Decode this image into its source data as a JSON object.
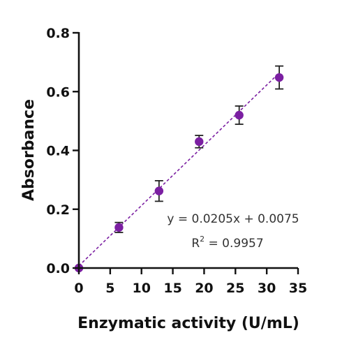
{
  "chart_data": {
    "type": "scatter",
    "xlabel": "Enzymatic activity (U/mL)",
    "ylabel": "Absorbance",
    "xlim": [
      0,
      35
    ],
    "ylim": [
      0,
      0.8
    ],
    "xticks": [
      0,
      5,
      10,
      15,
      20,
      25,
      30,
      35
    ],
    "yticks": [
      0.0,
      0.2,
      0.4,
      0.6,
      0.8
    ],
    "xtick_labels": [
      "0",
      "5",
      "10",
      "15",
      "20",
      "25",
      "30",
      "35"
    ],
    "ytick_labels": [
      "0.0",
      "0.2",
      "0.4",
      "0.6",
      "0.8"
    ],
    "grid": false,
    "series": [
      {
        "x": [
          0,
          6.4,
          12.8,
          19.2,
          25.6,
          32.0
        ],
        "y": [
          0.0,
          0.138,
          0.262,
          0.43,
          0.52,
          0.648
        ],
        "error": [
          0,
          0.017,
          0.035,
          0.021,
          0.031,
          0.039
        ]
      }
    ],
    "fit": {
      "slope": 0.0205,
      "intercept": 0.0075,
      "x_range": [
        0,
        32
      ]
    },
    "equation_prefix": "y = 0.0205x + 0.0075",
    "r2_label": "R",
    "r2_exponent": "2",
    "r2_value": " = 0.9957",
    "marker_color": "#7b1fa2",
    "line_color": "#7b1fa2"
  }
}
